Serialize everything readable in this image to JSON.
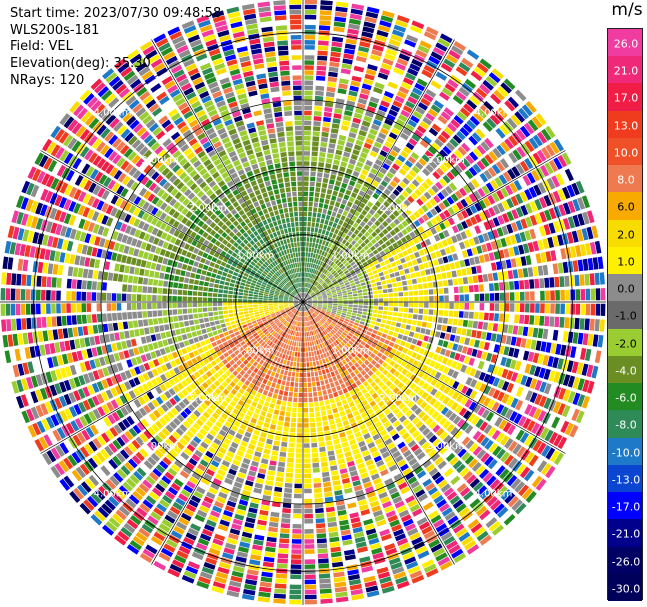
{
  "info": {
    "start_time": "Start time: 2023/07/30 09:48:58",
    "instrument": "WLS200s-181",
    "field": "Field: VEL",
    "elevation": "Elevation(deg): 35.30",
    "nrays": "NRays: 120"
  },
  "chart_data": {
    "type": "heatmap",
    "projection": "polar-ppi",
    "field": "VEL",
    "n_rays": 120,
    "range_rings_km": [
      1.0,
      2.0,
      3.0,
      4.0
    ],
    "ring_labels": [
      "1.00km",
      "2.00km",
      "3.00km",
      "4.00km"
    ],
    "max_range_km": 4.5,
    "spoke_step_deg": 30,
    "colorbar": {
      "unit": "m/s",
      "ticks": [
        "26.0",
        "21.0",
        "17.0",
        "13.0",
        "10.0",
        "8.0",
        "6.0",
        "2.0",
        "1.0",
        "0.0",
        "-1.0",
        "-2.0",
        "-4.0",
        "-6.0",
        "-8.0",
        "-10.0",
        "-13.0",
        "-17.0",
        "-21.0",
        "-26.0",
        "-30.0"
      ],
      "colors": [
        "#f0308c",
        "#f23069",
        "#f01c3c",
        "#f04428",
        "#f05a1e",
        "#f0823c",
        "#f8a040",
        "#f8b400",
        "#f8e600",
        "#fff28c",
        "#c8c8c8",
        "#6e6e6e",
        "#9acd32",
        "#6b8e23",
        "#228b22",
        "#2e8b57",
        "#1e78c8",
        "#0050c8",
        "#0000ff",
        "#000096",
        "#000050"
      ]
    }
  }
}
